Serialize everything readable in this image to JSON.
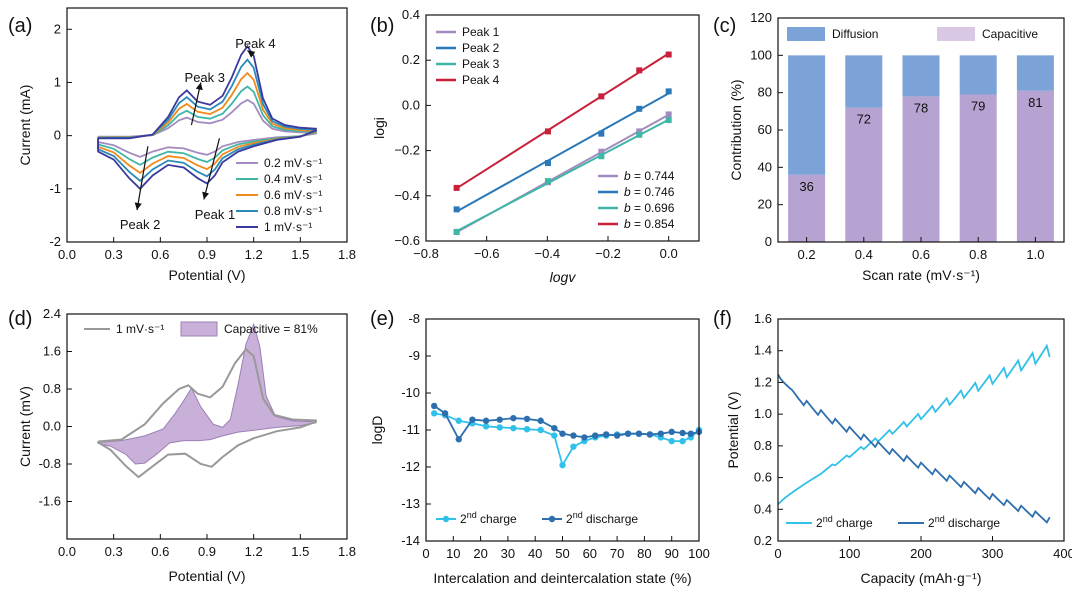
{
  "figure": {
    "colors": {
      "blue_curve": "#3b3a9e",
      "teal_curve": "#2a8ab8",
      "orange_curve": "#f08a1c",
      "green_curve": "#3fb6a6",
      "purple_curve": "#a48bbf",
      "diffusion": "#7ba3d8",
      "capacitive": "#d8c8e6",
      "capacitive_deep": "#8e7ab8",
      "fit_line": "#3b6fb0",
      "charge": "#31c0ea",
      "discharge": "#2d6fae",
      "grey": "#999999"
    }
  },
  "chart_data": [
    {
      "id": "a",
      "panel_label": "(a)",
      "type": "line",
      "xlabel": "Potential (V)",
      "ylabel": "Current  (mA)",
      "xlim": [
        0.0,
        1.8
      ],
      "ylim": [
        -2,
        2.4
      ],
      "xticks": [
        "0.0",
        "0.3",
        "0.6",
        "0.9",
        "1.2",
        "1.5",
        "1.8"
      ],
      "yticks": [
        "-2",
        "-1",
        "0",
        "1",
        "2"
      ],
      "series": [
        {
          "name": "0.2 mV·s⁻¹",
          "color": "#a48bbf",
          "scale": 0.2
        },
        {
          "name": "0.4 mV·s⁻¹",
          "color": "#3fb6a6",
          "scale": 0.4
        },
        {
          "name": "0.6 mV·s⁻¹",
          "color": "#f08a1c",
          "scale": 0.6
        },
        {
          "name": "0.8 mV·s⁻¹",
          "color": "#2a8ab8",
          "scale": 0.8
        },
        {
          "name": "1 mV·s⁻¹",
          "color": "#3b3a9e",
          "scale": 1.0
        }
      ],
      "peaks": {
        "peak1": {
          "label": "Peak 1",
          "x": 0.9,
          "y": -0.9
        },
        "peak2": {
          "label": "Peak 2",
          "x": 0.47,
          "y": -1.0
        },
        "peak3": {
          "label": "Peak 3",
          "x": 0.77,
          "y": 0.85
        },
        "peak4": {
          "label": "Peak 4",
          "x": 1.16,
          "y": 1.68
        }
      },
      "anodic_base": [
        [
          0.2,
          -0.05
        ],
        [
          0.4,
          -0.05
        ],
        [
          0.55,
          0.02
        ],
        [
          0.65,
          0.35
        ],
        [
          0.72,
          0.72
        ],
        [
          0.77,
          0.85
        ],
        [
          0.84,
          0.64
        ],
        [
          0.92,
          0.58
        ],
        [
          1.0,
          0.75
        ],
        [
          1.06,
          1.1
        ],
        [
          1.12,
          1.52
        ],
        [
          1.16,
          1.68
        ],
        [
          1.2,
          1.5
        ],
        [
          1.26,
          0.7
        ],
        [
          1.32,
          0.32
        ],
        [
          1.4,
          0.2
        ],
        [
          1.5,
          0.15
        ],
        [
          1.6,
          0.13
        ]
      ],
      "cathodic_base": [
        [
          1.6,
          0.1
        ],
        [
          1.5,
          -0.02
        ],
        [
          1.35,
          -0.08
        ],
        [
          1.2,
          -0.2
        ],
        [
          1.1,
          -0.3
        ],
        [
          1.0,
          -0.5
        ],
        [
          0.95,
          -0.75
        ],
        [
          0.9,
          -0.9
        ],
        [
          0.84,
          -0.8
        ],
        [
          0.75,
          -0.6
        ],
        [
          0.65,
          -0.55
        ],
        [
          0.55,
          -0.75
        ],
        [
          0.47,
          -1.0
        ],
        [
          0.4,
          -0.8
        ],
        [
          0.3,
          -0.45
        ],
        [
          0.2,
          -0.3
        ]
      ]
    },
    {
      "id": "b",
      "panel_label": "(b)",
      "type": "scatter",
      "xlabel": "logv",
      "ylabel": "logi",
      "xlim": [
        -0.8,
        0.1
      ],
      "ylim": [
        -0.6,
        0.4
      ],
      "xticks": [
        "−0.8",
        "−0.6",
        "−0.4",
        "−0.2",
        "0.0"
      ],
      "yticks": [
        "−0.6",
        "−0.4",
        "−0.2",
        "0.0",
        "0.2",
        "0.4"
      ],
      "x": [
        -0.699,
        -0.398,
        -0.222,
        -0.097,
        0.0
      ],
      "series": [
        {
          "name": "Peak 1",
          "color": "#a48bbf",
          "b_label": "b",
          "b_value": "= 0.744",
          "values": [
            -0.56,
            -0.34,
            -0.205,
            -0.115,
            -0.04
          ]
        },
        {
          "name": "Peak 2",
          "color": "#2a78b8",
          "b_label": "b",
          "b_value": "= 0.746",
          "values": [
            -0.46,
            -0.255,
            -0.125,
            -0.015,
            0.062
          ]
        },
        {
          "name": "Peak 3",
          "color": "#3fb6a6",
          "b_label": "b",
          "b_value": "= 0.696",
          "values": [
            -0.56,
            -0.335,
            -0.225,
            -0.13,
            -0.065
          ]
        },
        {
          "name": "Peak 4",
          "color": "#c8203a",
          "b_label": "b",
          "b_value": "= 0.854",
          "values": [
            -0.365,
            -0.115,
            0.04,
            0.155,
            0.225
          ]
        }
      ]
    },
    {
      "id": "c",
      "panel_label": "(c)",
      "type": "bar",
      "xlabel": "Scan rate (mV·s⁻¹)",
      "ylabel": "Contribution (%)",
      "ylim": [
        0,
        120
      ],
      "yticks": [
        "0",
        "20",
        "40",
        "60",
        "80",
        "100",
        "120"
      ],
      "categories": [
        "0.2",
        "0.4",
        "0.6",
        "0.8",
        "1.0"
      ],
      "series": [
        {
          "name": "Capacitive",
          "color": "#d8c8e6",
          "values": [
            36,
            72,
            78,
            79,
            81
          ]
        },
        {
          "name": "Diffusion",
          "color": "#7ba3d8",
          "values": [
            64,
            28,
            22,
            21,
            19
          ]
        }
      ],
      "labels": [
        "36",
        "72",
        "78",
        "79",
        "81"
      ]
    },
    {
      "id": "d",
      "panel_label": "(d)",
      "type": "area",
      "xlabel": "Potential (V)",
      "ylabel": "Current  (mV)",
      "xlim": [
        0.0,
        1.8
      ],
      "ylim": [
        -2.4,
        2.4
      ],
      "xticks": [
        "0.0",
        "0.3",
        "0.6",
        "0.9",
        "1.2",
        "1.5",
        "1.8"
      ],
      "yticks": [
        "-1.6",
        "-0.8",
        "0.0",
        "0.8",
        "1.6",
        "2.4"
      ],
      "series": [
        {
          "name": "1 mV·s⁻¹",
          "color": "#999999"
        },
        {
          "name": "Capacitive = 81%",
          "color": "#b99ac8"
        }
      ],
      "cv_upper": [
        [
          0.2,
          -0.32
        ],
        [
          0.35,
          -0.28
        ],
        [
          0.5,
          0.05
        ],
        [
          0.62,
          0.5
        ],
        [
          0.72,
          0.8
        ],
        [
          0.78,
          0.88
        ],
        [
          0.84,
          0.7
        ],
        [
          0.92,
          0.62
        ],
        [
          1.0,
          0.85
        ],
        [
          1.08,
          1.35
        ],
        [
          1.15,
          1.65
        ],
        [
          1.2,
          1.5
        ],
        [
          1.26,
          0.6
        ],
        [
          1.33,
          0.25
        ],
        [
          1.45,
          0.15
        ],
        [
          1.6,
          0.13
        ]
      ],
      "cv_lower": [
        [
          1.6,
          0.1
        ],
        [
          1.5,
          -0.02
        ],
        [
          1.35,
          -0.1
        ],
        [
          1.2,
          -0.25
        ],
        [
          1.1,
          -0.4
        ],
        [
          1.0,
          -0.65
        ],
        [
          0.93,
          -0.86
        ],
        [
          0.86,
          -0.8
        ],
        [
          0.76,
          -0.58
        ],
        [
          0.65,
          -0.6
        ],
        [
          0.55,
          -0.85
        ],
        [
          0.46,
          -1.08
        ],
        [
          0.38,
          -0.85
        ],
        [
          0.28,
          -0.5
        ],
        [
          0.2,
          -0.34
        ]
      ],
      "cap_upper": [
        [
          0.2,
          -0.34
        ],
        [
          0.35,
          -0.3
        ],
        [
          0.5,
          -0.2
        ],
        [
          0.62,
          -0.05
        ],
        [
          0.7,
          0.3
        ],
        [
          0.75,
          0.55
        ],
        [
          0.8,
          0.82
        ],
        [
          0.86,
          0.42
        ],
        [
          0.94,
          0.05
        ],
        [
          1.0,
          -0.02
        ],
        [
          1.05,
          0.15
        ],
        [
          1.1,
          0.9
        ],
        [
          1.15,
          1.75
        ],
        [
          1.2,
          2.18
        ],
        [
          1.24,
          1.7
        ],
        [
          1.28,
          0.65
        ],
        [
          1.34,
          0.22
        ],
        [
          1.45,
          0.12
        ],
        [
          1.6,
          0.1
        ]
      ],
      "cap_lower": [
        [
          1.6,
          0.08
        ],
        [
          1.5,
          0.02
        ],
        [
          1.35,
          -0.02
        ],
        [
          1.2,
          -0.08
        ],
        [
          1.1,
          -0.12
        ],
        [
          1.0,
          -0.2
        ],
        [
          0.92,
          -0.28
        ],
        [
          0.85,
          -0.3
        ],
        [
          0.75,
          -0.3
        ],
        [
          0.66,
          -0.35
        ],
        [
          0.58,
          -0.58
        ],
        [
          0.5,
          -0.78
        ],
        [
          0.44,
          -0.8
        ],
        [
          0.38,
          -0.6
        ],
        [
          0.28,
          -0.42
        ],
        [
          0.2,
          -0.36
        ]
      ]
    },
    {
      "id": "e",
      "panel_label": "(e)",
      "type": "line",
      "xlabel": "Intercalation and deintercalation state (%)",
      "ylabel": "logD",
      "xlim": [
        0,
        100
      ],
      "ylim": [
        -14,
        -8
      ],
      "xticks": [
        "0",
        "10",
        "20",
        "30",
        "40",
        "50",
        "60",
        "70",
        "80",
        "90",
        "100"
      ],
      "yticks": [
        "-14",
        "-13",
        "-12",
        "-11",
        "-10",
        "-9",
        "-8"
      ],
      "series": [
        {
          "name": "2nd charge",
          "color": "#31c0ea",
          "x": [
            3,
            7,
            12,
            17,
            22,
            27,
            32,
            37,
            42,
            47,
            50,
            54,
            58,
            62,
            66,
            70,
            74,
            78,
            82,
            86,
            90,
            94,
            97,
            100
          ],
          "values": [
            -10.55,
            -10.6,
            -10.75,
            -10.82,
            -10.9,
            -10.93,
            -10.95,
            -10.98,
            -11.0,
            -11.15,
            -11.95,
            -11.45,
            -11.3,
            -11.2,
            -11.15,
            -11.12,
            -11.1,
            -11.1,
            -11.12,
            -11.2,
            -11.3,
            -11.3,
            -11.2,
            -11.0
          ]
        },
        {
          "name": "2nd discharge",
          "color": "#2d6fae",
          "x": [
            3,
            7,
            12,
            17,
            22,
            27,
            32,
            37,
            42,
            47,
            50,
            54,
            58,
            62,
            66,
            70,
            74,
            78,
            82,
            86,
            90,
            94,
            97,
            100
          ],
          "values": [
            -10.35,
            -10.55,
            -11.25,
            -10.72,
            -10.75,
            -10.72,
            -10.68,
            -10.7,
            -10.75,
            -10.95,
            -11.1,
            -11.15,
            -11.2,
            -11.15,
            -11.12,
            -11.15,
            -11.1,
            -11.1,
            -11.12,
            -11.1,
            -11.05,
            -11.08,
            -11.1,
            -11.05
          ]
        }
      ],
      "legend_labels": {
        "charge_sup": "nd",
        "charge_rest": " charge",
        "discharge_sup": "nd",
        "discharge_rest": " discharge",
        "num": "2"
      }
    },
    {
      "id": "f",
      "panel_label": "(f)",
      "type": "line",
      "xlabel": "Capacity (mAh·g⁻¹)",
      "ylabel": "Potential (V)",
      "xlim": [
        0,
        400
      ],
      "ylim": [
        0.2,
        1.6
      ],
      "xticks": [
        "0",
        "100",
        "200",
        "300",
        "400"
      ],
      "yticks": [
        "0.2",
        "0.4",
        "0.6",
        "0.8",
        "1.0",
        "1.2",
        "1.4",
        "1.6"
      ],
      "series": [
        {
          "name": "2nd charge",
          "color": "#31c0ea"
        },
        {
          "name": "2nd discharge",
          "color": "#2d6fae"
        }
      ],
      "legend_labels": {
        "num": "2",
        "sup": "nd",
        "charge_rest": " charge",
        "discharge_rest": " discharge"
      }
    }
  ],
  "labels": {
    "panel_a": "(a)",
    "panel_b": "(b)",
    "panel_c": "(c)",
    "panel_d": "(d)",
    "panel_e": "(e)",
    "panel_f": "(f)",
    "peak1": "Peak 1",
    "peak2": "Peak 2",
    "peak3": "Peak 3",
    "peak4": "Peak 4",
    "legend_diffusion": "Diffusion",
    "legend_capacitive": "Capacitive",
    "legend_d_cv": "1 mV·s⁻¹",
    "legend_d_cap": "Capacitive = 81%"
  }
}
